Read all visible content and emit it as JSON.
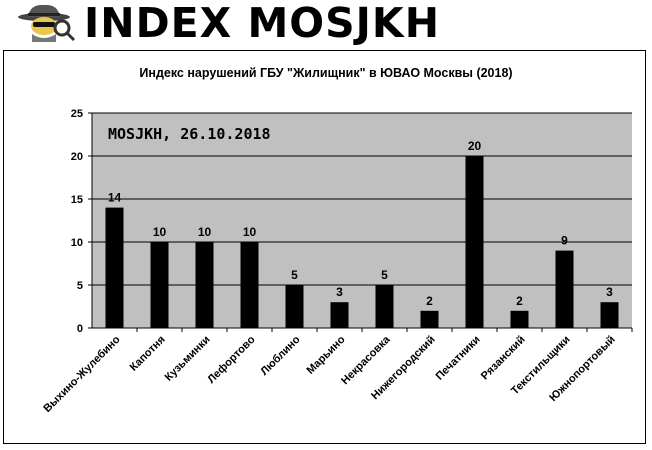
{
  "header": {
    "brand": "INDEX MOSJKH",
    "logo_icon": "spy-detective-icon"
  },
  "chart_data": {
    "type": "bar",
    "title": "Индекс нарушений ГБУ \"Жилищник\" в ЮВАО Москвы (2018)",
    "annotation": "MOSJKH, 26.10.2018",
    "categories": [
      "Выхино-Жулебино",
      "Капотня",
      "Кузьминки",
      "Лефортово",
      "Люблино",
      "Марьино",
      "Некрасовка",
      "Нижегородский",
      "Печатники",
      "Рязанский",
      "Текстильщики",
      "Южнопортовый"
    ],
    "values": [
      14,
      10,
      10,
      10,
      5,
      3,
      5,
      2,
      20,
      2,
      9,
      3
    ],
    "ylim": [
      0,
      25
    ],
    "yticks": [
      0,
      5,
      10,
      15,
      20,
      25
    ],
    "grid": true,
    "colors": {
      "bar": "#000000",
      "plot_bg": "#c0c0c0",
      "grid": "#000000"
    }
  }
}
